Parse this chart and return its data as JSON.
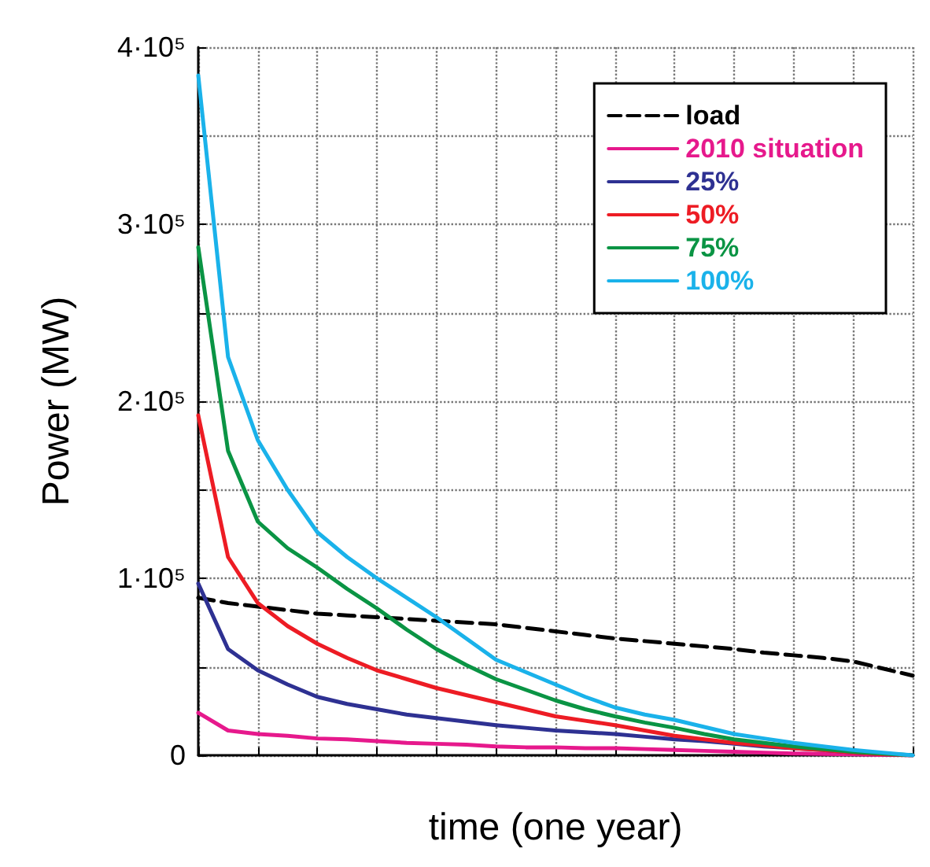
{
  "chart_data": {
    "type": "line",
    "xlabel": "time (one year)",
    "ylabel": "Power (MW)",
    "categories": [
      null,
      null,
      null,
      null,
      null,
      null,
      null,
      null,
      null,
      null,
      null,
      null,
      null,
      null,
      null,
      null,
      null,
      null,
      null,
      null,
      null,
      null,
      null,
      null,
      null
    ],
    "ylim": [
      0,
      400000
    ],
    "yticks": [
      0,
      {
        "value": 50000,
        "label": null
      },
      {
        "value": 100000,
        "label": "1·10⁵"
      },
      {
        "value": 150000,
        "label": null
      },
      {
        "value": 200000,
        "label": "2·10⁵"
      },
      {
        "value": 250000,
        "label": null
      },
      {
        "value": 300000,
        "label": "3·10⁵"
      },
      {
        "value": 350000,
        "label": null
      },
      {
        "value": 400000,
        "label": "4·10⁵"
      }
    ],
    "grid": true,
    "legend": "top right",
    "marker": "none",
    "series": [
      {
        "name": "load",
        "color": "#000000",
        "line_style": "dashed",
        "values": [
          89000,
          86000,
          84000,
          82000,
          80000,
          79000,
          78000,
          77000,
          76000,
          75000,
          74000,
          72000,
          70000,
          68000,
          66000,
          64500,
          63000,
          61500,
          60000,
          58000,
          56500,
          55000,
          53000,
          49000,
          45000
        ]
      },
      {
        "name": "2010 situation",
        "color": "#e6198c",
        "values": [
          24000,
          14000,
          12000,
          11000,
          9500,
          9000,
          8000,
          7000,
          6500,
          6000,
          5000,
          4500,
          4500,
          4000,
          4000,
          3500,
          3000,
          2500,
          2000,
          1500,
          1000,
          800,
          500,
          200,
          0
        ]
      },
      {
        "name": "25%",
        "color": "#2e3192",
        "values": [
          97000,
          60000,
          48000,
          40000,
          33000,
          29000,
          26000,
          23000,
          21000,
          19000,
          17000,
          15500,
          14000,
          13000,
          12000,
          10500,
          9000,
          8000,
          6500,
          5000,
          4000,
          3000,
          1500,
          500,
          0
        ]
      },
      {
        "name": "50%",
        "color": "#ed1c24",
        "values": [
          192000,
          112000,
          86000,
          73000,
          63000,
          55000,
          48000,
          43000,
          38000,
          34000,
          30000,
          26000,
          22000,
          19500,
          17000,
          14000,
          11000,
          9000,
          7000,
          5500,
          4000,
          3000,
          1500,
          500,
          0
        ]
      },
      {
        "name": "75%",
        "color": "#0a9444",
        "values": [
          287000,
          172000,
          132000,
          117000,
          106000,
          94000,
          83000,
          71000,
          60000,
          51000,
          43000,
          37000,
          31000,
          26000,
          22000,
          18500,
          15500,
          12000,
          9000,
          7000,
          5000,
          3500,
          2000,
          1000,
          0
        ]
      },
      {
        "name": "100%",
        "color": "#1ab2ea",
        "values": [
          384000,
          225000,
          178000,
          150000,
          126000,
          112000,
          100000,
          89000,
          78000,
          66000,
          54000,
          47000,
          40000,
          33000,
          27000,
          23000,
          20000,
          16000,
          12000,
          9500,
          7000,
          5000,
          3000,
          1500,
          0
        ]
      }
    ]
  }
}
